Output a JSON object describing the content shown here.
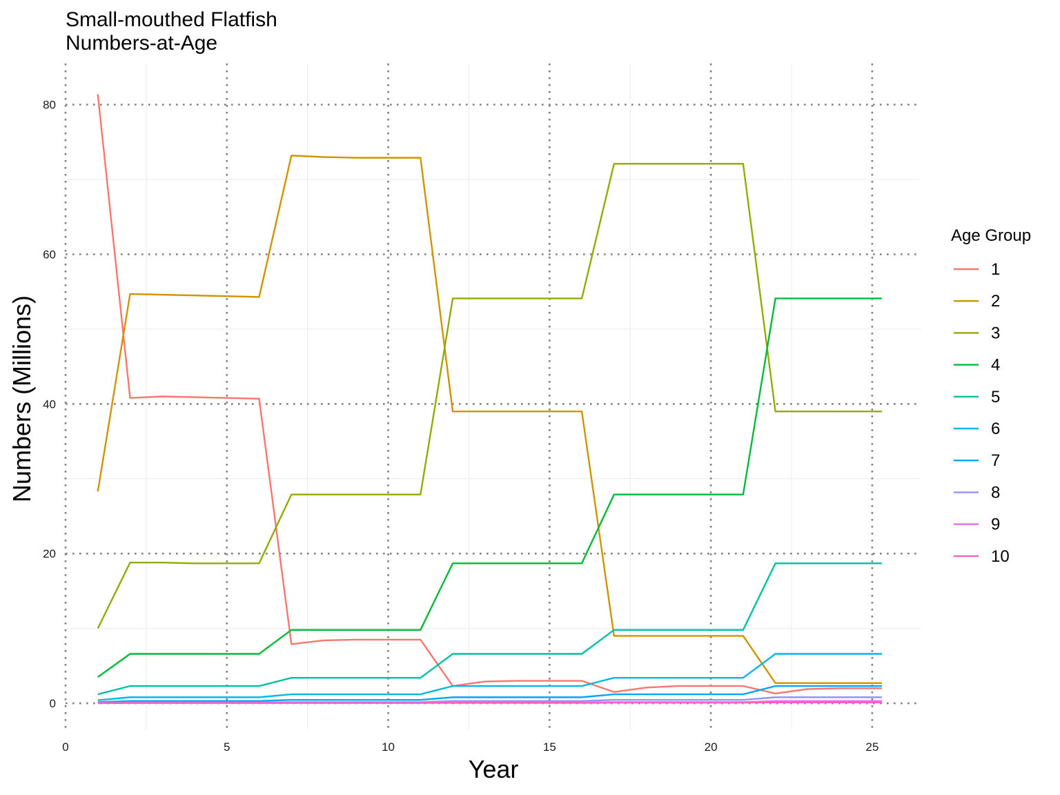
{
  "chart_data": {
    "type": "line",
    "title": "Small-mouthed Flatfish",
    "subtitle": "Numbers-at-Age",
    "xlabel": "Year",
    "ylabel": "Numbers (Millions)",
    "xlim": [
      0,
      26.5
    ],
    "ylim": [
      -3.5,
      85.5
    ],
    "x_ticks": [
      0,
      5,
      10,
      15,
      20,
      25
    ],
    "y_ticks": [
      0,
      20,
      40,
      60,
      80
    ],
    "x_minor_ticks": [
      2.5,
      7.5,
      12.5,
      17.5,
      22.5
    ],
    "y_minor_ticks": [
      10,
      30,
      50,
      70
    ],
    "grid": true,
    "legend_title": "Age Group",
    "legend_position": "right",
    "x": [
      1,
      2,
      3,
      4,
      5,
      6,
      7,
      8,
      9,
      10,
      11,
      12,
      13,
      14,
      15,
      16,
      17,
      18,
      19,
      20,
      21,
      22,
      23,
      24,
      25,
      25.3
    ],
    "series": [
      {
        "name": "1",
        "color": "#F8766D",
        "values": [
          81.4,
          40.8,
          41.0,
          40.9,
          40.8,
          40.7,
          7.9,
          8.4,
          8.5,
          8.5,
          8.5,
          2.3,
          2.9,
          3.0,
          3.0,
          3.0,
          1.5,
          2.1,
          2.3,
          2.3,
          2.3,
          1.3,
          1.9,
          2.0,
          2.0,
          2.0
        ]
      },
      {
        "name": "2",
        "color": "#D39200",
        "values": [
          28.3,
          54.7,
          54.6,
          54.5,
          54.4,
          54.3,
          73.2,
          73.0,
          72.9,
          72.9,
          72.9,
          39.0,
          39.0,
          39.0,
          39.0,
          39.0,
          9.0,
          9.0,
          9.0,
          9.0,
          9.0,
          2.7,
          2.7,
          2.7,
          2.7,
          2.7
        ]
      },
      {
        "name": "3",
        "color": "#93AA00",
        "values": [
          10.0,
          18.8,
          18.8,
          18.7,
          18.7,
          18.7,
          27.9,
          27.9,
          27.9,
          27.9,
          27.9,
          54.1,
          54.1,
          54.1,
          54.1,
          54.1,
          72.1,
          72.1,
          72.1,
          72.1,
          72.1,
          39.0,
          39.0,
          39.0,
          39.0,
          39.0
        ]
      },
      {
        "name": "4",
        "color": "#00BA38",
        "values": [
          3.5,
          6.6,
          6.6,
          6.6,
          6.6,
          6.6,
          9.8,
          9.8,
          9.8,
          9.8,
          9.8,
          18.7,
          18.7,
          18.7,
          18.7,
          18.7,
          27.9,
          27.9,
          27.9,
          27.9,
          27.9,
          54.1,
          54.1,
          54.1,
          54.1,
          54.1
        ]
      },
      {
        "name": "5",
        "color": "#00C19F",
        "values": [
          1.2,
          2.3,
          2.3,
          2.3,
          2.3,
          2.3,
          3.4,
          3.4,
          3.4,
          3.4,
          3.4,
          6.6,
          6.6,
          6.6,
          6.6,
          6.6,
          9.8,
          9.8,
          9.8,
          9.8,
          9.8,
          18.7,
          18.7,
          18.7,
          18.7,
          18.7
        ]
      },
      {
        "name": "6",
        "color": "#00B9E3",
        "values": [
          0.4,
          0.8,
          0.8,
          0.8,
          0.8,
          0.8,
          1.2,
          1.2,
          1.2,
          1.2,
          1.2,
          2.3,
          2.3,
          2.3,
          2.3,
          2.3,
          3.4,
          3.4,
          3.4,
          3.4,
          3.4,
          6.6,
          6.6,
          6.6,
          6.6,
          6.6
        ]
      },
      {
        "name": "7",
        "color": "#00A5FF",
        "values": [
          0.15,
          0.3,
          0.3,
          0.3,
          0.3,
          0.3,
          0.45,
          0.45,
          0.45,
          0.45,
          0.45,
          0.8,
          0.8,
          0.8,
          0.8,
          0.8,
          1.2,
          1.2,
          1.2,
          1.2,
          1.2,
          2.3,
          2.3,
          2.3,
          2.3,
          2.3
        ]
      },
      {
        "name": "8",
        "color": "#9590FF",
        "values": [
          0.05,
          0.1,
          0.1,
          0.1,
          0.1,
          0.1,
          0.15,
          0.15,
          0.15,
          0.15,
          0.15,
          0.3,
          0.3,
          0.3,
          0.3,
          0.3,
          0.45,
          0.45,
          0.45,
          0.45,
          0.45,
          0.8,
          0.8,
          0.8,
          0.8,
          0.8
        ]
      },
      {
        "name": "9",
        "color": "#E76BF3",
        "values": [
          0.02,
          0.04,
          0.04,
          0.04,
          0.04,
          0.04,
          0.06,
          0.06,
          0.06,
          0.06,
          0.06,
          0.1,
          0.1,
          0.1,
          0.1,
          0.1,
          0.15,
          0.15,
          0.15,
          0.15,
          0.15,
          0.3,
          0.3,
          0.3,
          0.3,
          0.3
        ]
      },
      {
        "name": "10",
        "color": "#FF62BC",
        "values": [
          0.01,
          0.02,
          0.02,
          0.02,
          0.02,
          0.02,
          0.03,
          0.03,
          0.03,
          0.03,
          0.03,
          0.05,
          0.05,
          0.05,
          0.05,
          0.05,
          0.08,
          0.08,
          0.08,
          0.08,
          0.08,
          0.12,
          0.12,
          0.12,
          0.12,
          0.12
        ]
      }
    ]
  }
}
